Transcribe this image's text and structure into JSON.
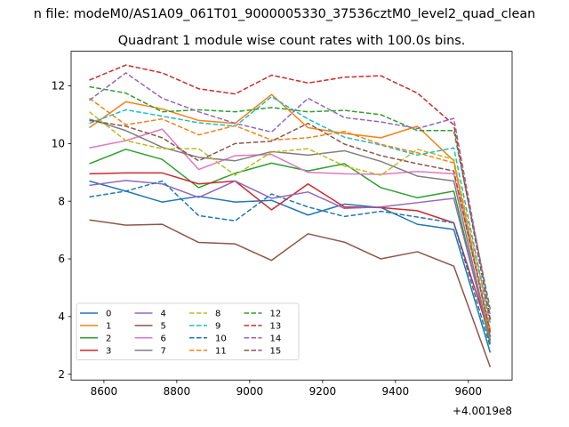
{
  "chart_data": {
    "type": "line",
    "suptitle": "n file: modeM0/AS1A09_061T01_9000005330_37536cztM0_level2_quad_clean",
    "title": "Quadrant 1 module wise count rates with 100.0s bins.",
    "x_offset_label": "+4.0019e8",
    "xlim": [
      8510,
      9720
    ],
    "ylim": [
      1.8,
      13.2
    ],
    "x_ticks": [
      8600,
      8800,
      9000,
      9200,
      9400,
      9600
    ],
    "x_tick_labels": [
      "8600",
      "8800",
      "9000",
      "9200",
      "9400",
      "9600"
    ],
    "y_ticks": [
      2,
      4,
      6,
      8,
      10,
      12
    ],
    "y_tick_labels": [
      "2",
      "4",
      "6",
      "8",
      "10",
      "12"
    ],
    "legend_position": "lower-left",
    "legend_columns": 4,
    "x": [
      8560,
      8660,
      8760,
      8860,
      8960,
      9060,
      9160,
      9260,
      9360,
      9460,
      9560,
      9660
    ],
    "series": [
      {
        "name": "0",
        "color": "#1f77b4",
        "dash": "solid",
        "values": [
          8.7,
          8.35,
          7.97,
          8.17,
          7.97,
          8.03,
          7.52,
          7.9,
          7.78,
          7.2,
          7.02,
          2.75
        ]
      },
      {
        "name": "1",
        "color": "#ff7f0e",
        "dash": "solid",
        "values": [
          10.55,
          11.45,
          11.2,
          10.8,
          10.7,
          11.7,
          10.55,
          10.35,
          10.2,
          10.6,
          9.4,
          3.3
        ]
      },
      {
        "name": "2",
        "color": "#2ca02c",
        "dash": "solid",
        "values": [
          9.3,
          9.8,
          9.45,
          8.47,
          8.97,
          9.32,
          9.05,
          9.3,
          8.47,
          8.12,
          8.35,
          3.05
        ]
      },
      {
        "name": "3",
        "color": "#d62728",
        "dash": "solid",
        "values": [
          8.95,
          8.98,
          8.98,
          8.6,
          8.7,
          7.7,
          8.6,
          7.8,
          7.78,
          7.67,
          7.25,
          3.3
        ]
      },
      {
        "name": "4",
        "color": "#9467bd",
        "dash": "solid",
        "values": [
          8.55,
          8.72,
          8.6,
          8.13,
          8.7,
          8.1,
          8.32,
          7.75,
          7.8,
          7.95,
          8.1,
          3.2
        ]
      },
      {
        "name": "5",
        "color": "#8c564b",
        "dash": "solid",
        "values": [
          7.35,
          7.17,
          7.2,
          6.57,
          6.52,
          5.95,
          6.87,
          6.58,
          6.0,
          6.25,
          5.75,
          2.25
        ]
      },
      {
        "name": "6",
        "color": "#e377c2",
        "dash": "solid",
        "values": [
          9.85,
          10.1,
          10.5,
          9.1,
          9.58,
          9.62,
          9.0,
          8.95,
          8.93,
          9.03,
          8.95,
          3.5
        ]
      },
      {
        "name": "7",
        "color": "#7f7f7f",
        "dash": "solid",
        "values": [
          10.85,
          10.45,
          9.87,
          9.52,
          9.4,
          9.72,
          9.6,
          9.75,
          9.38,
          8.87,
          8.7,
          3.15
        ]
      },
      {
        "name": "8",
        "color": "#bcbd22",
        "dash": "dashed",
        "values": [
          11.1,
          10.1,
          9.82,
          9.82,
          8.9,
          9.7,
          9.82,
          9.22,
          8.9,
          9.8,
          9.45,
          3.85
        ]
      },
      {
        "name": "9",
        "color": "#17becf",
        "dash": "dashed",
        "values": [
          10.7,
          11.17,
          10.95,
          10.72,
          10.6,
          11.62,
          10.85,
          10.22,
          9.95,
          9.6,
          9.85,
          3.75
        ]
      },
      {
        "name": "10",
        "color": "#1f77b4",
        "dash": "dashed",
        "values": [
          8.15,
          8.35,
          8.7,
          7.5,
          7.32,
          8.25,
          7.8,
          7.47,
          7.65,
          7.45,
          7.25,
          2.95
        ]
      },
      {
        "name": "11",
        "color": "#ff7f0e",
        "dash": "dashed",
        "values": [
          11.57,
          10.65,
          10.85,
          10.3,
          10.62,
          10.12,
          10.2,
          10.42,
          9.97,
          9.68,
          9.33,
          3.55
        ]
      },
      {
        "name": "12",
        "color": "#2ca02c",
        "dash": "dashed",
        "values": [
          11.97,
          11.75,
          11.1,
          11.17,
          11.1,
          11.25,
          11.1,
          11.15,
          11.0,
          10.45,
          10.45,
          4.25
        ]
      },
      {
        "name": "13",
        "color": "#d62728",
        "dash": "dashed",
        "values": [
          12.2,
          12.72,
          12.45,
          11.9,
          11.72,
          12.37,
          12.1,
          12.3,
          12.35,
          11.75,
          10.65,
          3.9
        ]
      },
      {
        "name": "14",
        "color": "#9467bd",
        "dash": "dashed",
        "values": [
          11.5,
          12.45,
          11.57,
          11.1,
          10.7,
          10.4,
          11.57,
          10.9,
          10.75,
          10.52,
          10.87,
          4.05
        ]
      },
      {
        "name": "15",
        "color": "#8c564b",
        "dash": "dashed",
        "values": [
          10.8,
          10.6,
          10.2,
          9.4,
          10.0,
          10.08,
          10.7,
          9.98,
          9.58,
          9.3,
          9.05,
          3.45
        ]
      }
    ]
  }
}
